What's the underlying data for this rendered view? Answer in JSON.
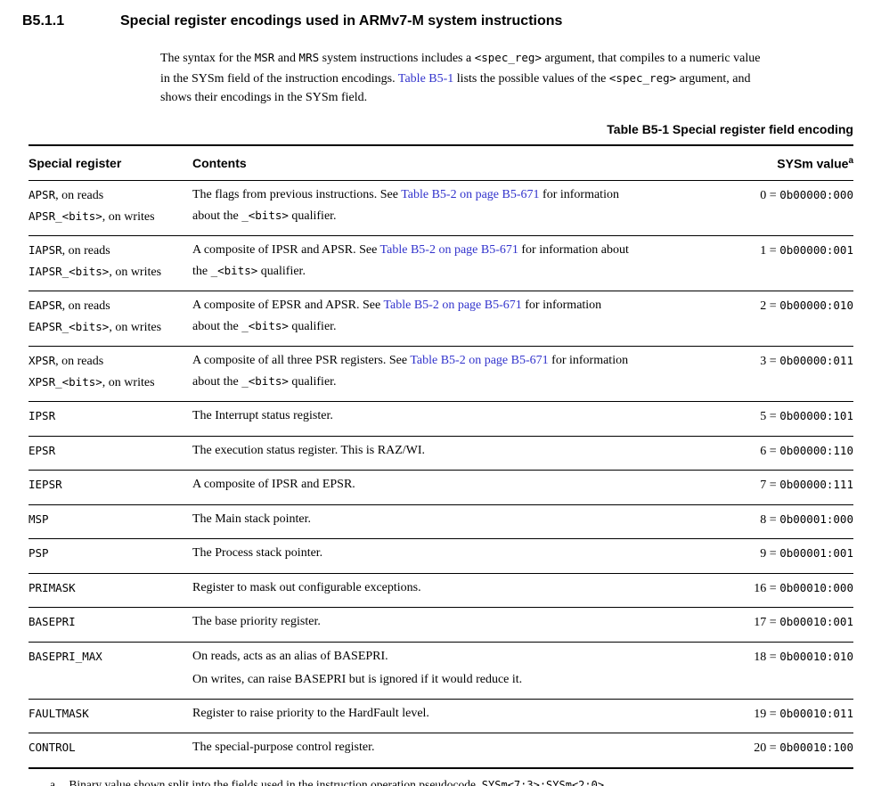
{
  "page": {
    "section_number": "B5.1.1",
    "section_title": "Special register encodings used in ARMv7-M system instructions"
  },
  "intro": {
    "lines": [
      [
        {
          "t": "The syntax for the ",
          "s": "serif"
        },
        {
          "t": "MSR",
          "s": "mono"
        },
        {
          "t": " and ",
          "s": "serif"
        },
        {
          "t": "MRS",
          "s": "mono"
        },
        {
          "t": " system instructions includes a ",
          "s": "serif"
        },
        {
          "t": "<spec_reg>",
          "s": "mono"
        },
        {
          "t": " argument, that compiles to a numeric value",
          "s": "serif"
        }
      ],
      [
        {
          "t": "in the SYSm field of the instruction encodings. ",
          "s": "serif"
        },
        {
          "t": "Table B5-1",
          "s": "link"
        },
        {
          "t": " lists the possible values of the ",
          "s": "serif"
        },
        {
          "t": "<spec_reg>",
          "s": "mono"
        },
        {
          "t": " argument, and",
          "s": "serif"
        }
      ],
      [
        {
          "t": "shows their encodings in the SYSm field.",
          "s": "serif"
        }
      ]
    ]
  },
  "table": {
    "caption": "Table B5-1 Special register field encoding",
    "columns": [
      "Special register",
      "Contents",
      "SYSm value"
    ],
    "sysm_superscript": "a",
    "rows": [
      {
        "register_lines": [
          [
            {
              "t": "APSR",
              "s": "mono"
            },
            {
              "t": ", on reads",
              "s": "serif"
            }
          ],
          [
            {
              "t": "APSR_<bits>",
              "s": "mono"
            },
            {
              "t": ", on writes",
              "s": "serif"
            }
          ]
        ],
        "contents_lines": [
          [
            {
              "t": "The flags from previous instructions. See ",
              "s": "serif"
            },
            {
              "t": "Table B5-2 on page B5-671",
              "s": "link"
            },
            {
              "t": " for information",
              "s": "serif"
            }
          ],
          [
            {
              "t": "about the ",
              "s": "serif"
            },
            {
              "t": "_<bits>",
              "s": "mono"
            },
            {
              "t": " qualifier.",
              "s": "serif"
            }
          ]
        ],
        "value": [
          {
            "t": "0 = ",
            "s": "serif"
          },
          {
            "t": "0b00000:000",
            "s": "mono"
          }
        ]
      },
      {
        "register_lines": [
          [
            {
              "t": "IAPSR",
              "s": "mono"
            },
            {
              "t": ", on reads",
              "s": "serif"
            }
          ],
          [
            {
              "t": "IAPSR_<bits>",
              "s": "mono"
            },
            {
              "t": ", on writes",
              "s": "serif"
            }
          ]
        ],
        "contents_lines": [
          [
            {
              "t": "A composite of IPSR and APSR. See ",
              "s": "serif"
            },
            {
              "t": "Table B5-2 on page B5-671",
              "s": "link"
            },
            {
              "t": " for information about",
              "s": "serif"
            }
          ],
          [
            {
              "t": "the ",
              "s": "serif"
            },
            {
              "t": "_<bits>",
              "s": "mono"
            },
            {
              "t": " qualifier.",
              "s": "serif"
            }
          ]
        ],
        "value": [
          {
            "t": "1 = ",
            "s": "serif"
          },
          {
            "t": "0b00000:001",
            "s": "mono"
          }
        ]
      },
      {
        "register_lines": [
          [
            {
              "t": "EAPSR",
              "s": "mono"
            },
            {
              "t": ", on reads",
              "s": "serif"
            }
          ],
          [
            {
              "t": "EAPSR_<bits>",
              "s": "mono"
            },
            {
              "t": ", on writes",
              "s": "serif"
            }
          ]
        ],
        "contents_lines": [
          [
            {
              "t": "A composite of EPSR and APSR. See ",
              "s": "serif"
            },
            {
              "t": "Table B5-2 on page B5-671",
              "s": "link"
            },
            {
              "t": " for information",
              "s": "serif"
            }
          ],
          [
            {
              "t": "about the ",
              "s": "serif"
            },
            {
              "t": "_<bits>",
              "s": "mono"
            },
            {
              "t": " qualifier.",
              "s": "serif"
            }
          ]
        ],
        "value": [
          {
            "t": "2 = ",
            "s": "serif"
          },
          {
            "t": "0b00000:010",
            "s": "mono"
          }
        ]
      },
      {
        "register_lines": [
          [
            {
              "t": "XPSR",
              "s": "mono"
            },
            {
              "t": ", on reads",
              "s": "serif"
            }
          ],
          [
            {
              "t": "XPSR_<bits>",
              "s": "mono"
            },
            {
              "t": ", on writes",
              "s": "serif"
            }
          ]
        ],
        "contents_lines": [
          [
            {
              "t": "A composite of all three PSR registers. See ",
              "s": "serif"
            },
            {
              "t": "Table B5-2 on page B5-671",
              "s": "link"
            },
            {
              "t": " for information",
              "s": "serif"
            }
          ],
          [
            {
              "t": "about the ",
              "s": "serif"
            },
            {
              "t": "_<bits>",
              "s": "mono"
            },
            {
              "t": " qualifier.",
              "s": "serif"
            }
          ]
        ],
        "value": [
          {
            "t": "3 = ",
            "s": "serif"
          },
          {
            "t": "0b00000:011",
            "s": "mono"
          }
        ]
      },
      {
        "register_lines": [
          [
            {
              "t": "IPSR",
              "s": "mono"
            }
          ]
        ],
        "contents_lines": [
          [
            {
              "t": "The Interrupt status register.",
              "s": "serif"
            }
          ]
        ],
        "value": [
          {
            "t": "5 = ",
            "s": "serif"
          },
          {
            "t": "0b00000:101",
            "s": "mono"
          }
        ]
      },
      {
        "register_lines": [
          [
            {
              "t": "EPSR",
              "s": "mono"
            }
          ]
        ],
        "contents_lines": [
          [
            {
              "t": "The execution status register. This is RAZ/WI.",
              "s": "serif"
            }
          ]
        ],
        "value": [
          {
            "t": "6 = ",
            "s": "serif"
          },
          {
            "t": "0b00000:110",
            "s": "mono"
          }
        ]
      },
      {
        "register_lines": [
          [
            {
              "t": "IEPSR",
              "s": "mono"
            }
          ]
        ],
        "contents_lines": [
          [
            {
              "t": "A composite of IPSR and EPSR.",
              "s": "serif"
            }
          ]
        ],
        "value": [
          {
            "t": "7 = ",
            "s": "serif"
          },
          {
            "t": "0b00000:111",
            "s": "mono"
          }
        ]
      },
      {
        "register_lines": [
          [
            {
              "t": "MSP",
              "s": "mono"
            }
          ]
        ],
        "contents_lines": [
          [
            {
              "t": "The Main stack pointer.",
              "s": "serif"
            }
          ]
        ],
        "value": [
          {
            "t": "8 = ",
            "s": "serif"
          },
          {
            "t": "0b00001:000",
            "s": "mono"
          }
        ]
      },
      {
        "register_lines": [
          [
            {
              "t": "PSP",
              "s": "mono"
            }
          ]
        ],
        "contents_lines": [
          [
            {
              "t": "The Process stack pointer.",
              "s": "serif"
            }
          ]
        ],
        "value": [
          {
            "t": "9 = ",
            "s": "serif"
          },
          {
            "t": "0b00001:001",
            "s": "mono"
          }
        ]
      },
      {
        "register_lines": [
          [
            {
              "t": "PRIMASK",
              "s": "mono"
            }
          ]
        ],
        "contents_lines": [
          [
            {
              "t": "Register to mask out configurable exceptions.",
              "s": "serif"
            }
          ]
        ],
        "value": [
          {
            "t": "16 = ",
            "s": "serif"
          },
          {
            "t": "0b00010:000",
            "s": "mono"
          }
        ]
      },
      {
        "register_lines": [
          [
            {
              "t": "BASEPRI",
              "s": "mono"
            }
          ]
        ],
        "contents_lines": [
          [
            {
              "t": "The base priority register.",
              "s": "serif"
            }
          ]
        ],
        "value": [
          {
            "t": "17 = ",
            "s": "serif"
          },
          {
            "t": "0b00010:001",
            "s": "mono"
          }
        ]
      },
      {
        "register_lines": [
          [
            {
              "t": "BASEPRI_MAX",
              "s": "mono"
            }
          ]
        ],
        "paragraph_lines": true,
        "contents_lines": [
          [
            {
              "t": "On reads, acts as an alias of BASEPRI.",
              "s": "serif"
            }
          ],
          [
            {
              "t": "On writes, can raise BASEPRI but is ignored if it would reduce it.",
              "s": "serif"
            }
          ]
        ],
        "value": [
          {
            "t": "18 = ",
            "s": "serif"
          },
          {
            "t": "0b00010:010",
            "s": "mono"
          }
        ]
      },
      {
        "register_lines": [
          [
            {
              "t": "FAULTMASK",
              "s": "mono"
            }
          ]
        ],
        "contents_lines": [
          [
            {
              "t": "Register to raise priority to the HardFault level.",
              "s": "serif"
            }
          ]
        ],
        "value": [
          {
            "t": "19 = ",
            "s": "serif"
          },
          {
            "t": "0b00010:011",
            "s": "mono"
          }
        ]
      },
      {
        "register_lines": [
          [
            {
              "t": "CONTROL",
              "s": "mono"
            }
          ]
        ],
        "contents_lines": [
          [
            {
              "t": "The special-purpose control register.",
              "s": "serif"
            }
          ]
        ],
        "value": [
          {
            "t": "20 = ",
            "s": "serif"
          },
          {
            "t": "0b00010:100",
            "s": "mono"
          }
        ]
      }
    ],
    "footnote": {
      "marker": "a.",
      "segments": [
        {
          "t": "Binary value shown split into the fields used in the instruction operation pseudocode, ",
          "s": "serif"
        },
        {
          "t": "SYSm<7:3>:SYSm<2:0>",
          "s": "mono"
        },
        {
          "t": ".",
          "s": "serif"
        }
      ]
    }
  },
  "colors": {
    "link_blue": "#3233cc",
    "text": "#000000",
    "background": "#ffffff"
  }
}
